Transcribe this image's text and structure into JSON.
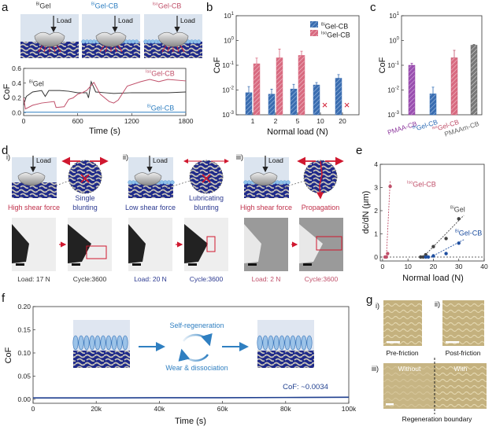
{
  "panel_labels": {
    "a": "a",
    "b": "b",
    "c": "c",
    "d": "d",
    "e": "e",
    "f": "f",
    "g": "g"
  },
  "colors": {
    "bigel": "#333333",
    "bigel_cb": "#2f6db5",
    "isogel_cb": "#c0506a",
    "navy": "#2b3990",
    "red": "#d0182f",
    "pmaa_cb": "#8e3a9e",
    "pmaam_cb": "#666666"
  },
  "panel_a": {
    "load_label": "Load",
    "schematics": [
      {
        "prefix": "Bi",
        "name": "Gel",
        "color": "#333333"
      },
      {
        "prefix": "Bi",
        "name": "Gel-CB",
        "color": "#2f7fc1"
      },
      {
        "prefix": "Iso",
        "name": "Gel-CB",
        "color": "#c0506a"
      }
    ]
  },
  "panel_d": {
    "load_label": "Load",
    "cases": [
      {
        "roman": "i)",
        "force": "High shear force",
        "force_color": "#c0304a",
        "mechanism": [
          "Single",
          "blunting"
        ],
        "mechanism_color": "#2b3990",
        "load_value": "Load: 17 N",
        "cycle": "Cycle:3600",
        "caption_color": "#333333"
      },
      {
        "roman": "ii)",
        "force": "Low shear force",
        "force_color": "#2b3990",
        "mechanism": [
          "Lubricating",
          "blunting"
        ],
        "mechanism_color": "#2b3990",
        "load_value": "Load: 20 N",
        "cycle": "Cycle:3600",
        "caption_color": "#2b3990"
      },
      {
        "roman": "iii)",
        "force": "High shear force",
        "force_color": "#c0304a",
        "mechanism": [
          "Propagation"
        ],
        "mechanism_color": "#c0304a",
        "load_value": "Load: 2 N",
        "cycle": "Cycle:3600",
        "caption_color": "#c0506a"
      }
    ]
  },
  "panel_f_inset": {
    "top": "Self-regeneration",
    "bottom": "Wear & dissociation"
  },
  "panel_g": {
    "items": [
      {
        "roman": "i)",
        "caption": "Pre-friction"
      },
      {
        "roman": "ii)",
        "caption": "Post-friction"
      },
      {
        "roman": "iii)",
        "caption": "Regeneration boundary",
        "left": "Without",
        "right": "With"
      }
    ]
  },
  "chart_data": [
    {
      "id": "a",
      "type": "line",
      "xlabel": "Time (s)",
      "ylabel": "CoF",
      "xlim": [
        0,
        1800
      ],
      "ylim": [
        -0.04,
        0.6
      ],
      "xticks": [
        0,
        600,
        1200,
        1800
      ],
      "xtick_labels": [
        "0",
        "600",
        "1200",
        "1800"
      ],
      "yticks": [
        0,
        0.2,
        0.4,
        0.6
      ],
      "ytick_labels": [
        "0.0",
        "0.2",
        "0.4",
        "0.6"
      ],
      "series": [
        {
          "prefix": "Bi",
          "name": "Gel",
          "color": "#333333",
          "x": [
            0,
            30,
            100,
            200,
            240,
            280,
            400,
            500,
            600,
            700,
            720,
            750,
            800,
            900,
            1000,
            1200,
            1400,
            1600,
            1800
          ],
          "y": [
            0.1,
            0.22,
            0.28,
            0.3,
            0.22,
            0.3,
            0.3,
            0.29,
            0.27,
            0.27,
            0.2,
            0.42,
            0.28,
            0.27,
            0.26,
            0.27,
            0.27,
            0.27,
            0.28
          ]
        },
        {
          "prefix": "Iso",
          "name": "Gel-CB",
          "color": "#c0506a",
          "x": [
            0,
            20,
            100,
            200,
            340,
            360,
            450,
            500,
            550,
            600,
            650,
            700,
            780,
            850,
            950,
            1000,
            1050,
            1150,
            1300,
            1400,
            1500,
            1600,
            1800
          ],
          "y": [
            0.2,
            0.05,
            0.1,
            0.13,
            0.15,
            0.07,
            0.08,
            0.18,
            0.2,
            0.25,
            0.27,
            0.3,
            0.41,
            0.25,
            0.15,
            0.13,
            0.17,
            0.36,
            0.42,
            0.45,
            0.42,
            0.45,
            0.43
          ]
        },
        {
          "prefix": "Bi",
          "name": "Gel-CB",
          "color": "#2f7fc1",
          "x": [
            0,
            1800
          ],
          "y": [
            0.005,
            0.005
          ]
        }
      ]
    },
    {
      "id": "b",
      "type": "bar",
      "xlabel": "Normal load (N)",
      "ylabel": "CoF",
      "yscale": "log",
      "ylim": [
        0.001,
        10
      ],
      "ytick_exponents": [
        -3,
        -2,
        -1,
        0,
        1
      ],
      "categories": [
        "1",
        "2",
        "5",
        "10",
        "20"
      ],
      "legend": "top-right",
      "series": [
        {
          "prefix": "Bi",
          "name": "Gel-CB",
          "color": "#3a6db0",
          "values": [
            0.0078,
            0.0068,
            0.011,
            0.016,
            0.03
          ],
          "errors": [
            0.006,
            0.004,
            0.006,
            0.004,
            0.012
          ]
        },
        {
          "prefix": "Iso",
          "name": "Gel-CB",
          "color": "#d86a80",
          "values": [
            0.115,
            0.2,
            0.25,
            null,
            null
          ],
          "errors": [
            0.08,
            0.25,
            0.12,
            null,
            null
          ],
          "failed_marker": "×"
        }
      ]
    },
    {
      "id": "c",
      "type": "bar",
      "ylabel": "CoF",
      "yscale": "log",
      "ylim": [
        0.001,
        10
      ],
      "ytick_exponents": [
        -3,
        -2,
        -1,
        0,
        1
      ],
      "categories": [
        {
          "prefix": "",
          "name": "PMAA-CB",
          "color": "#8e3a9e"
        },
        {
          "prefix": "Bi",
          "name": "Gel-CB",
          "color": "#2f6db5"
        },
        {
          "prefix": "Iso",
          "name": "Gel-CB",
          "color": "#c0506a"
        },
        {
          "prefix": "",
          "name": "PMAAm-CB",
          "color": "#666666"
        }
      ],
      "values": [
        0.1,
        0.007,
        0.2,
        0.65
      ],
      "errors": [
        0.02,
        0.006,
        0.2,
        0.05
      ]
    },
    {
      "id": "e",
      "type": "scatter",
      "xlabel": "Normal load (N)",
      "ylabel": "dc/dN (μm)",
      "xlim": [
        -0.9,
        40
      ],
      "ylim": [
        -0.17,
        4
      ],
      "xticks": [
        0,
        10,
        20,
        30,
        40
      ],
      "yticks": [
        0,
        1,
        2,
        3,
        4
      ],
      "series": [
        {
          "prefix": "Iso",
          "name": "Gel-CB",
          "color": "#c0506a",
          "x": [
            1,
            1.5,
            2,
            3
          ],
          "y": [
            0,
            0,
            0.15,
            3.05
          ],
          "fit": [
            [
              1.5,
              0
            ],
            [
              3,
              3.3
            ]
          ]
        },
        {
          "prefix": "Bi",
          "name": "Gel",
          "color": "#444444",
          "x": [
            15,
            16,
            17,
            20,
            25,
            30
          ],
          "y": [
            0,
            0,
            0.1,
            0.45,
            0.8,
            1.65
          ],
          "fit": [
            [
              16,
              0
            ],
            [
              32,
              1.8
            ]
          ]
        },
        {
          "prefix": "Bi",
          "name": "Gel-CB",
          "color": "#1f4fa0",
          "x": [
            17,
            18,
            20,
            25,
            30
          ],
          "y": [
            0,
            0,
            0.05,
            0.15,
            0.6
          ],
          "fit": [
            [
              19,
              0
            ],
            [
              32,
              0.75
            ]
          ]
        }
      ]
    },
    {
      "id": "f",
      "type": "line",
      "xlabel": "Time (s)",
      "ylabel": "CoF",
      "xlim": [
        0,
        100000
      ],
      "ylim": [
        -0.0085,
        0.2
      ],
      "xticks": [
        0,
        20000,
        40000,
        60000,
        80000,
        100000
      ],
      "xtick_labels": [
        "0",
        "20k",
        "40k",
        "60k",
        "80k",
        "100k"
      ],
      "yticks": [
        0,
        0.05,
        0.1,
        0.15,
        0.2
      ],
      "ytick_labels": [
        "0.00",
        "0.05",
        "0.10",
        "0.15",
        "0.20"
      ],
      "annotation": "CoF: ~0.0034",
      "series": [
        {
          "color": "#1f3f8f",
          "x": [
            0,
            20000,
            40000,
            60000,
            80000,
            100000
          ],
          "y": [
            0.003,
            0.003,
            0.0035,
            0.0035,
            0.004,
            0.0045
          ]
        }
      ]
    }
  ]
}
